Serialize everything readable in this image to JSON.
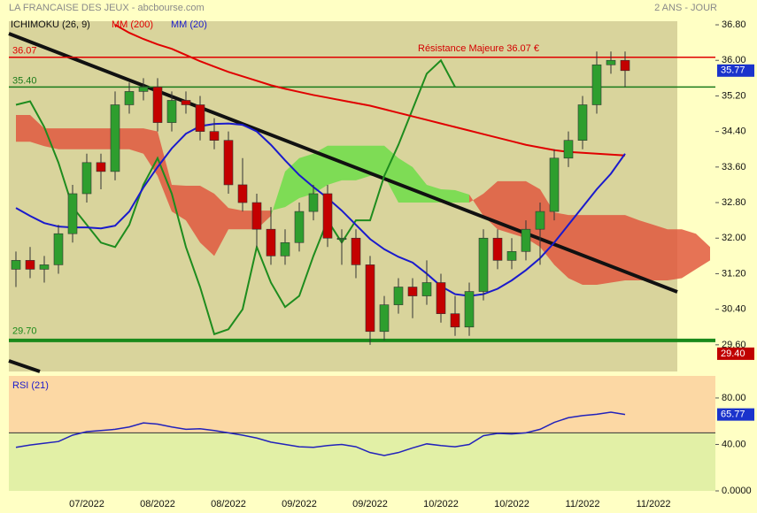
{
  "chart_data": [
    {
      "type": "candlestick",
      "title": "LA FRANCAISE DES JEUX - abcbourse.com",
      "subtitle": "2 ANS - JOUR",
      "categories": [
        null,
        null,
        null,
        null,
        null,
        "07/2022",
        null,
        null,
        null,
        null,
        "08/2022",
        null,
        null,
        null,
        null,
        "08/2022",
        null,
        null,
        null,
        null,
        "09/2022",
        null,
        null,
        null,
        null,
        "09/2022",
        null,
        null,
        null,
        null,
        "10/2022",
        null,
        null,
        null,
        null,
        "10/2022",
        null,
        null,
        null,
        null,
        "11/2022",
        null,
        null,
        null,
        null,
        "11/2022",
        null,
        null,
        null,
        null
      ],
      "open": [
        31.3,
        31.5,
        31.3,
        31.4,
        32.1,
        33.0,
        33.7,
        33.5,
        35.0,
        35.3,
        35.4,
        34.6,
        35.1,
        35.0,
        34.4,
        34.2,
        33.2,
        32.8,
        32.2,
        31.6,
        31.9,
        32.6,
        33.0,
        32.0,
        32.0,
        31.4,
        29.9,
        30.5,
        30.9,
        30.7,
        31.0,
        30.3,
        30.0,
        30.8,
        32.0,
        31.5,
        31.7,
        32.2,
        32.6,
        33.8,
        34.2,
        35.0,
        35.9,
        36.0,
        null,
        null,
        null,
        null,
        null,
        null
      ],
      "high": [
        31.7,
        31.8,
        31.6,
        32.3,
        33.2,
        33.9,
        33.9,
        35.3,
        35.5,
        35.6,
        35.6,
        35.3,
        35.3,
        35.2,
        34.7,
        34.4,
        33.8,
        33.0,
        32.7,
        32.2,
        32.8,
        33.2,
        33.2,
        32.2,
        32.2,
        31.6,
        30.7,
        31.1,
        31.1,
        31.5,
        31.2,
        30.7,
        31.0,
        32.2,
        32.2,
        32.0,
        32.4,
        32.8,
        34.0,
        34.4,
        35.2,
        36.2,
        36.2,
        36.2,
        null,
        null,
        null,
        null,
        null,
        null
      ],
      "low": [
        30.9,
        31.1,
        31.0,
        31.2,
        31.9,
        32.8,
        33.1,
        33.3,
        34.8,
        35.1,
        34.4,
        34.4,
        34.8,
        34.2,
        34.0,
        33.0,
        32.6,
        31.8,
        31.4,
        31.4,
        31.7,
        32.4,
        31.8,
        31.4,
        31.1,
        29.6,
        29.7,
        30.3,
        30.2,
        30.5,
        30.1,
        29.8,
        29.8,
        30.6,
        31.3,
        31.3,
        31.5,
        31.4,
        32.4,
        33.6,
        34.0,
        34.8,
        35.7,
        35.4,
        null,
        null,
        null,
        null,
        null,
        null
      ],
      "close": [
        31.5,
        31.3,
        31.4,
        32.1,
        33.0,
        33.7,
        33.5,
        35.0,
        35.3,
        35.4,
        34.6,
        35.1,
        35.0,
        34.4,
        34.2,
        33.2,
        32.8,
        32.2,
        31.6,
        31.9,
        32.6,
        33.0,
        32.0,
        32.0,
        31.4,
        29.9,
        30.5,
        30.9,
        30.7,
        31.0,
        30.3,
        30.0,
        30.8,
        32.0,
        31.5,
        31.7,
        32.2,
        32.6,
        33.8,
        34.2,
        35.0,
        35.9,
        36.0,
        35.77,
        null,
        null,
        null,
        null,
        null,
        null
      ],
      "up_color": "#2e9e2e",
      "down_color": "#c40000",
      "series": [
        {
          "name": "MM (200)",
          "color": "#e00000",
          "values": [
            null,
            null,
            null,
            null,
            null,
            null,
            null,
            36.8,
            36.62,
            36.48,
            36.36,
            36.26,
            36.12,
            35.98,
            35.86,
            35.74,
            35.64,
            35.54,
            35.44,
            35.36,
            35.29,
            35.22,
            35.16,
            35.1,
            35.04,
            34.98,
            34.9,
            34.82,
            34.74,
            34.66,
            34.58,
            34.5,
            34.42,
            34.34,
            34.26,
            34.18,
            34.1,
            34.04,
            33.98,
            33.94,
            33.92,
            33.9,
            33.88,
            33.86,
            null,
            null,
            null,
            null,
            null,
            null
          ]
        },
        {
          "name": "MM (20)",
          "color": "#1a1acc",
          "values": [
            32.68,
            32.5,
            32.34,
            32.26,
            32.24,
            32.24,
            32.22,
            32.28,
            32.6,
            33.14,
            33.6,
            34.02,
            34.35,
            34.52,
            34.57,
            34.58,
            34.55,
            34.4,
            34.1,
            33.75,
            33.42,
            33.15,
            32.9,
            32.62,
            32.3,
            31.98,
            31.75,
            31.58,
            31.45,
            31.2,
            30.92,
            30.74,
            30.7,
            30.74,
            30.86,
            31.05,
            31.28,
            31.55,
            31.9,
            32.3,
            32.7,
            33.1,
            33.45,
            33.9,
            null,
            null,
            null,
            null,
            null,
            null
          ]
        }
      ],
      "ichimoku": {
        "name": "ICHIMOKU (26, 9)",
        "chikou_color": "#1e8c1e",
        "bull_color": "#66dd44",
        "bear_color": "#e0503a",
        "chikou": [
          35.0,
          35.08,
          34.5,
          33.7,
          32.7,
          32.3,
          31.9,
          31.8,
          32.3,
          33.2,
          33.8,
          33.0,
          31.8,
          30.9,
          29.84,
          29.95,
          30.4,
          31.8,
          31.0,
          30.45,
          30.7,
          31.6,
          32.4,
          31.9,
          32.4,
          32.4,
          33.4,
          34.1,
          34.9,
          35.7,
          36.0,
          35.4,
          null,
          null,
          null,
          null,
          null,
          null,
          null,
          null,
          null,
          null,
          null,
          null,
          null,
          null,
          null,
          null,
          null,
          null
        ],
        "span_a": [
          34.17,
          34.17,
          34.07,
          34.0,
          34.0,
          34.0,
          34.0,
          34.0,
          34.0,
          33.9,
          33.4,
          32.6,
          32.4,
          31.9,
          31.6,
          32.2,
          32.2,
          32.2,
          32.5,
          33.5,
          33.8,
          33.9,
          34.08,
          34.08,
          34.08,
          34.08,
          34.08,
          33.8,
          33.6,
          33.2,
          33.1,
          33.08,
          32.98,
          32.5,
          32.2,
          32.1,
          32.0,
          31.8,
          31.4,
          31.1,
          30.95,
          30.95,
          31.0,
          31.05,
          31.05,
          31.05,
          31.05,
          31.1,
          31.3,
          31.5
        ],
        "span_b": [
          34.77,
          34.77,
          34.47,
          34.47,
          34.47,
          34.47,
          34.47,
          34.47,
          34.47,
          34.47,
          34.4,
          33.2,
          33.18,
          33.18,
          33.0,
          32.68,
          32.62,
          32.62,
          32.62,
          32.7,
          32.9,
          33.0,
          33.2,
          33.3,
          33.3,
          33.4,
          33.4,
          32.8,
          32.8,
          32.8,
          32.8,
          32.8,
          32.8,
          33.0,
          33.28,
          33.28,
          33.28,
          33.1,
          32.58,
          32.52,
          32.52,
          32.52,
          32.52,
          32.52,
          32.4,
          32.3,
          32.2,
          32.2,
          32.1,
          31.8
        ]
      },
      "levels": [
        {
          "value": 36.07,
          "label": "36.07",
          "color": "#e00000"
        },
        {
          "value": 35.4,
          "label": "35.40",
          "color": "#1a7a1a"
        },
        {
          "value": 29.7,
          "label": "29.70",
          "color": "#1a8a1a"
        }
      ],
      "annotation": "Résistance Majeure 36.07 €",
      "price_tags": [
        {
          "value": 35.77,
          "label": "35.77",
          "color": "#1a33cc"
        },
        {
          "value": 29.4,
          "label": "29.40",
          "color": "#c00000"
        }
      ],
      "ylim": [
        29.0,
        36.96
      ],
      "yticks": [
        {
          "value": 36.8,
          "label": "36.80"
        },
        {
          "value": 36,
          "label": "36.00"
        },
        {
          "value": 35.2,
          "label": "35.20"
        },
        {
          "value": 34.4,
          "label": "34.40"
        },
        {
          "value": 33.6,
          "label": "33.60"
        },
        {
          "value": 32.8,
          "label": "32.80"
        },
        {
          "value": 32,
          "label": "32.00"
        },
        {
          "value": 31.2,
          "label": "31.20"
        },
        {
          "value": 30.4,
          "label": "30.40"
        },
        {
          "value": 29.6,
          "label": "29.60"
        }
      ],
      "grid": false
    },
    {
      "type": "line",
      "title": "RSI (21)",
      "color": "#2222bb",
      "values": [
        37.5,
        39.5,
        41,
        42.5,
        48,
        51,
        52,
        53,
        55,
        58.5,
        57.5,
        55,
        53,
        53.5,
        52,
        50,
        48,
        45.5,
        42,
        40,
        38,
        37.5,
        39,
        40,
        38,
        33,
        30.5,
        33,
        37,
        40.5,
        39,
        38,
        40,
        47.5,
        49.5,
        49,
        50,
        53,
        59,
        63,
        64.8,
        66,
        67.8,
        65.77,
        null,
        null,
        null,
        null,
        null,
        null
      ],
      "reference_line": 50,
      "price_tag": {
        "value": 65.77,
        "label": "65.77",
        "color": "#1a33cc"
      },
      "ylim": [
        0,
        99
      ],
      "yticks": [
        {
          "value": 80,
          "label": "80.00"
        },
        {
          "value": 40,
          "label": "40.00"
        },
        {
          "value": 0,
          "label": "0.0000"
        }
      ],
      "grid": false
    }
  ]
}
